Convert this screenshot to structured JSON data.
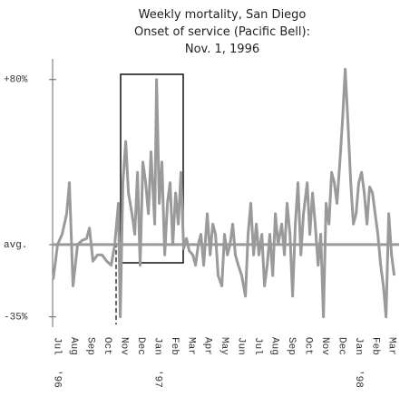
{
  "chart_data": {
    "type": "line",
    "title": [
      "Weekly mortality, San Diego",
      "Onset of service (Pacific Bell):",
      "Nov. 1, 1996"
    ],
    "x": [
      -0.27,
      0,
      0.27,
      0.54,
      0.7,
      0.92,
      1.19,
      1.46,
      1.73,
      1.9,
      2.11,
      2.38,
      2.66,
      2.93,
      3.2,
      3.41,
      3.52,
      3.63,
      3.74,
      3.9,
      4.07,
      4.23,
      4.44,
      4.61,
      4.77,
      4.93,
      5.09,
      5.26,
      5.42,
      5.58,
      5.8,
      5.91,
      6.07,
      6.23,
      6.4,
      6.56,
      6.72,
      6.88,
      7.05,
      7.21,
      7.37,
      7.53,
      7.7,
      7.86,
      8.08,
      8.24,
      8.4,
      8.56,
      8.73,
      8.94,
      9.11,
      9.27,
      9.43,
      9.59,
      9.81,
      9.97,
      10.14,
      10.3,
      10.46,
      10.62,
      10.79,
      11.0,
      11.22,
      11.38,
      11.54,
      11.71,
      11.87,
      12.03,
      12.2,
      12.36,
      12.52,
      12.68,
      12.85,
      13.01,
      13.17,
      13.39,
      13.55,
      13.71,
      13.88,
      14.04,
      14.2,
      14.36,
      14.53,
      14.69,
      14.91,
      15.07,
      15.23,
      15.39,
      15.56,
      15.72,
      15.88,
      16.04,
      16.21,
      16.37,
      16.53,
      16.69,
      16.86,
      17.02,
      17.18,
      17.34,
      17.51,
      17.67,
      17.83,
      17.99,
      18.16,
      18.32,
      18.48,
      18.64,
      18.81,
      18.97,
      19.13,
      19.3,
      19.46,
      19.62,
      19.78,
      19.95,
      20.11
    ],
    "series": [
      {
        "color": "#9a9a9a",
        "values": [
          -17,
          0,
          5,
          15,
          30,
          -20,
          0,
          2,
          3,
          8,
          -8,
          -5,
          -5,
          -8,
          -10,
          0,
          10,
          20,
          -35,
          30,
          50,
          25,
          15,
          5,
          35,
          -10,
          40,
          30,
          15,
          45,
          10,
          80,
          20,
          40,
          -5,
          20,
          30,
          0,
          25,
          10,
          35,
          -2,
          3,
          -3,
          -5,
          -10,
          0,
          5,
          -10,
          15,
          -5,
          10,
          5,
          -15,
          -20,
          5,
          -5,
          0,
          10,
          -5,
          -10,
          -15,
          -25,
          5,
          20,
          -5,
          10,
          -5,
          5,
          -20,
          -10,
          5,
          -15,
          15,
          0,
          10,
          -5,
          20,
          5,
          -25,
          10,
          30,
          -5,
          15,
          30,
          5,
          25,
          10,
          -10,
          5,
          -35,
          20,
          10,
          35,
          30,
          20,
          40,
          60,
          85,
          60,
          30,
          10,
          15,
          30,
          35,
          25,
          10,
          28,
          25,
          15,
          5,
          -10,
          -20,
          -35,
          15,
          -5,
          -15
        ]
      }
    ],
    "xlim": [
      -0.3,
      20.4
    ],
    "xticks": [
      {
        "value": 0,
        "label": "Jul"
      },
      {
        "value": 1,
        "label": "Aug"
      },
      {
        "value": 2,
        "label": "Sep"
      },
      {
        "value": 3,
        "label": "Oct"
      },
      {
        "value": 4,
        "label": "Nov"
      },
      {
        "value": 5,
        "label": "Dec"
      },
      {
        "value": 6,
        "label": "Jan"
      },
      {
        "value": 7,
        "label": "Feb"
      },
      {
        "value": 8,
        "label": "Mar"
      },
      {
        "value": 9,
        "label": "Apr"
      },
      {
        "value": 10,
        "label": "May"
      },
      {
        "value": 11,
        "label": "Jun"
      },
      {
        "value": 12,
        "label": "Jul"
      },
      {
        "value": 13,
        "label": "Aug"
      },
      {
        "value": 14,
        "label": "Sep"
      },
      {
        "value": 15,
        "label": "Oct"
      },
      {
        "value": 16,
        "label": "Nov"
      },
      {
        "value": 17,
        "label": "Dec"
      },
      {
        "value": 18,
        "label": "Jan"
      },
      {
        "value": 19,
        "label": "Feb"
      },
      {
        "value": 20,
        "label": "Mar"
      }
    ],
    "year_labels": [
      {
        "value": 0,
        "label": "'96"
      },
      {
        "value": 6,
        "label": "'97"
      },
      {
        "value": 18,
        "label": "'98"
      }
    ],
    "ylim": [
      -40,
      90
    ],
    "yticks": [
      {
        "value": 80,
        "label": "+80%"
      },
      {
        "value": 0,
        "label": "avg."
      },
      {
        "value": -35,
        "label": "-35%"
      }
    ]
  }
}
